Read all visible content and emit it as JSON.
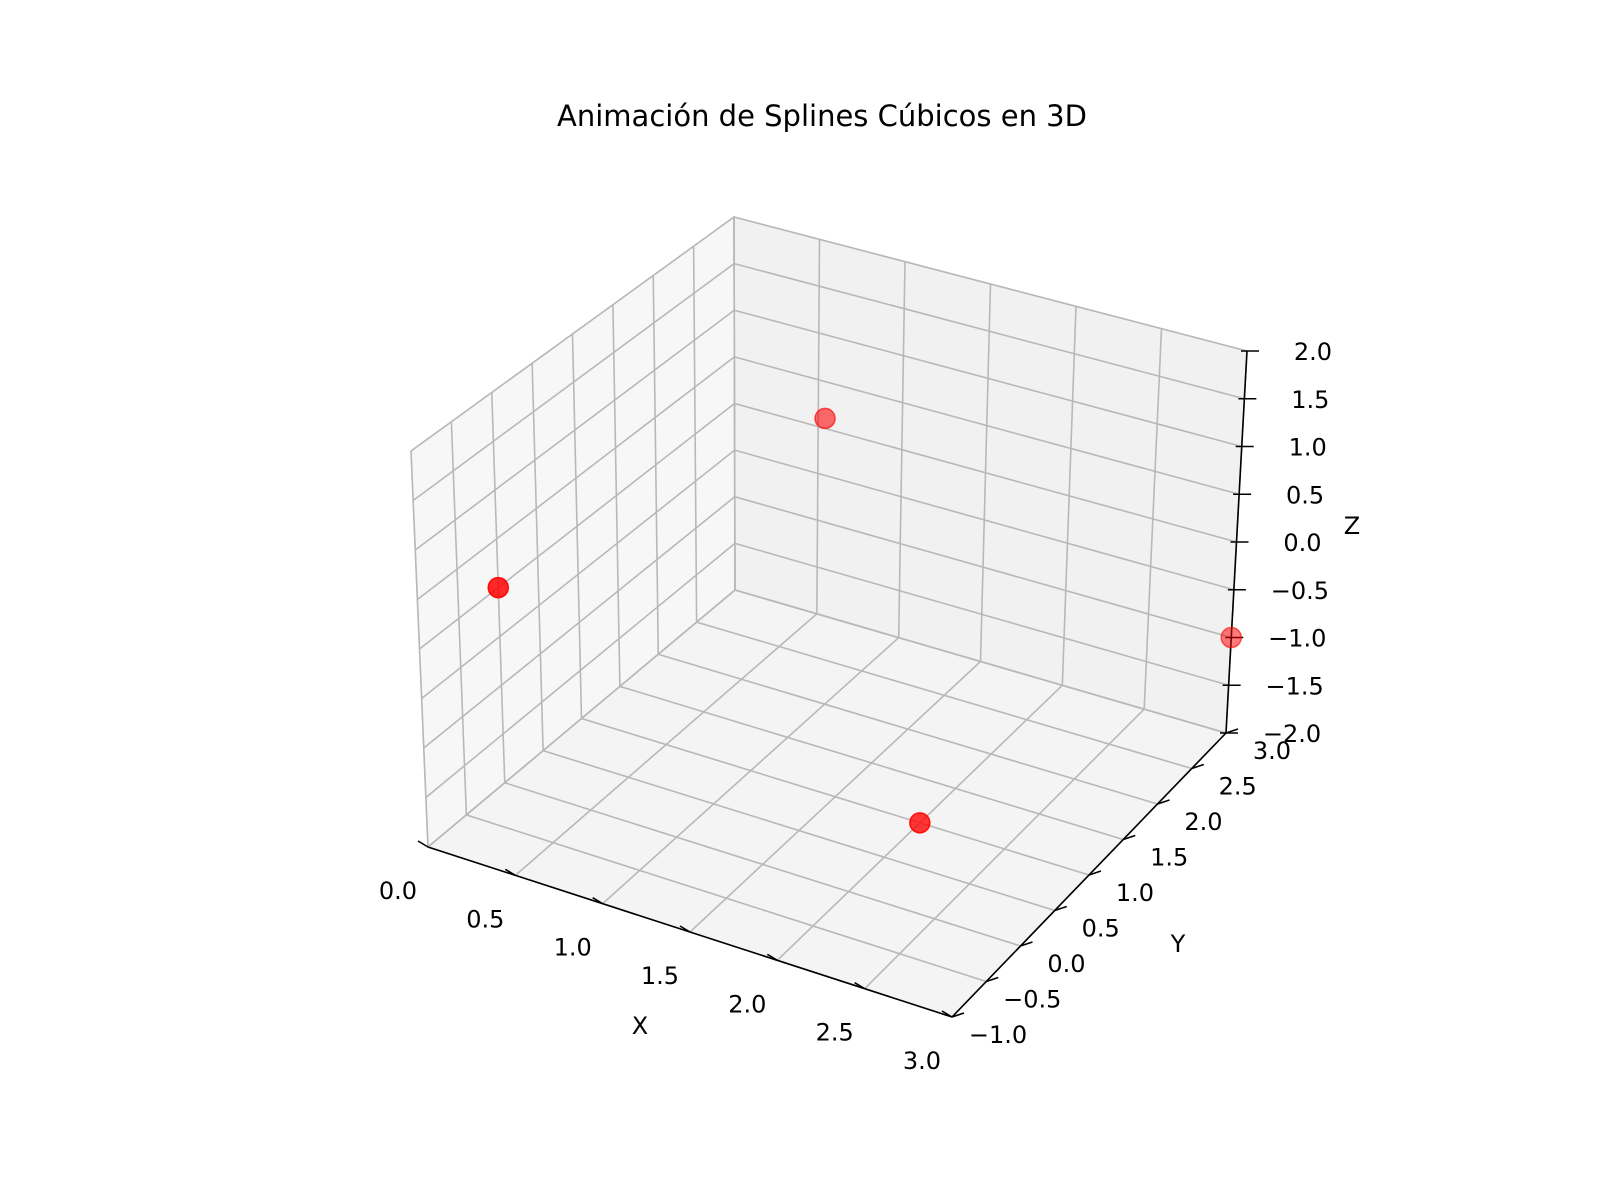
{
  "chart_data": {
    "type": "scatter",
    "title": "Animación de Splines Cúbicos en 3D",
    "xlabel": "X",
    "ylabel": "Y",
    "zlabel": "Z",
    "xlim": [
      0,
      3
    ],
    "ylim": [
      -1,
      3
    ],
    "zlim": [
      -2,
      2
    ],
    "x_ticks": [
      "0.0",
      "0.5",
      "1.0",
      "1.5",
      "2.0",
      "2.5",
      "3.0"
    ],
    "y_ticks": [
      "−1.0",
      "−0.5",
      "0.0",
      "0.5",
      "1.0",
      "1.5",
      "2.0",
      "2.5",
      "3.0"
    ],
    "z_ticks": [
      "−2.0",
      "−1.5",
      "−1.0",
      "−0.5",
      "0.0",
      "0.5",
      "1.0",
      "1.5",
      "2.0"
    ],
    "grid": true,
    "marker_color": "#ff0000",
    "points": [
      {
        "x": 0.0,
        "y": 0.0,
        "z": 0.0
      },
      {
        "x": 1.0,
        "y": 2.0,
        "z": 1.0
      },
      {
        "x": 2.0,
        "y": 1.0,
        "z": -2.0
      },
      {
        "x": 3.0,
        "y": 3.0,
        "z": -1.0
      }
    ]
  }
}
